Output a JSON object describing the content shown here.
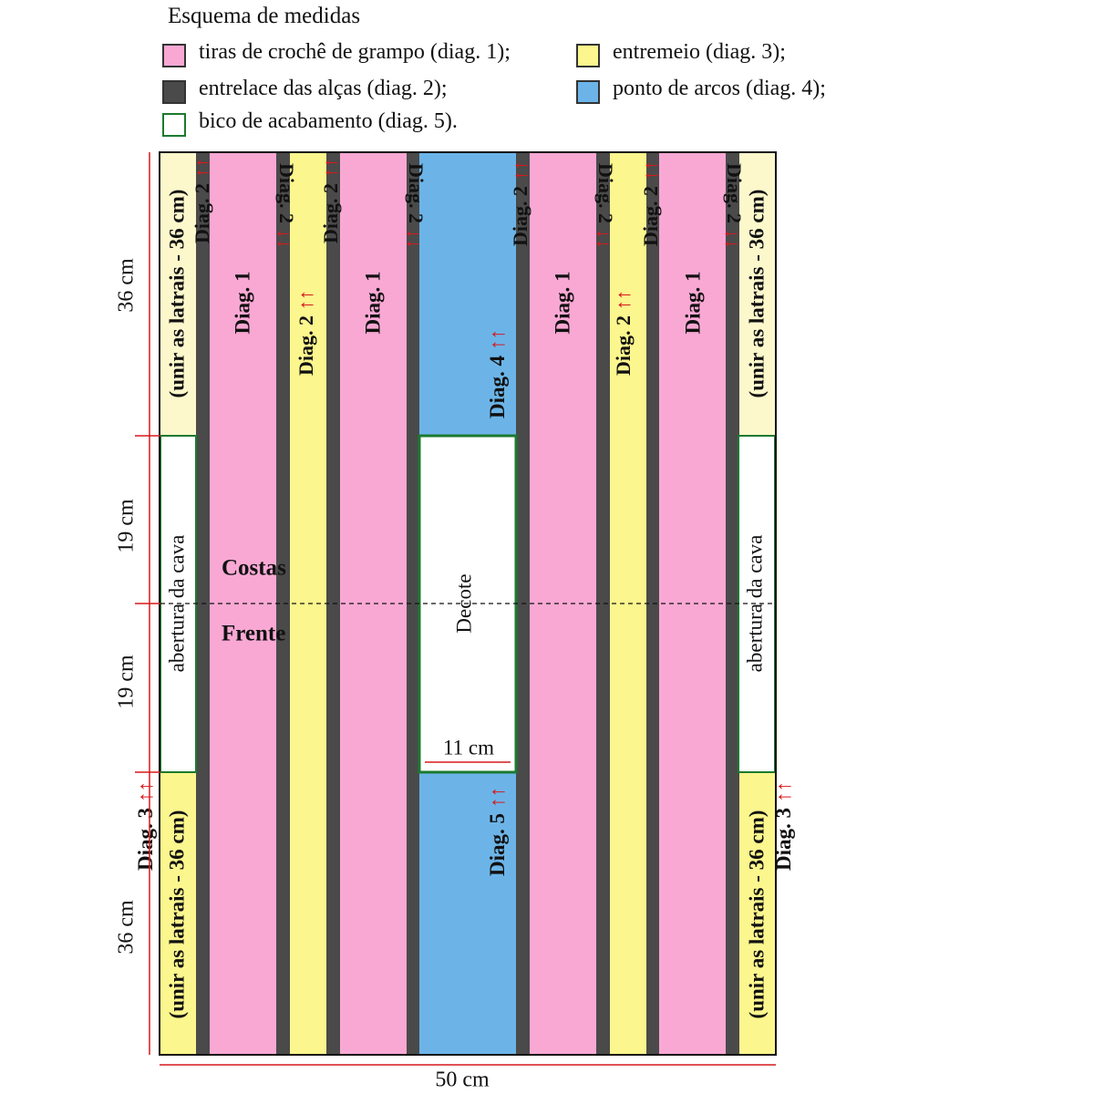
{
  "legend": {
    "title": "Esquema de medidas",
    "items": [
      {
        "key": "pink",
        "label": "tiras de crochê de grampo (diag. 1);",
        "color": "#f9a8d4"
      },
      {
        "key": "yellow",
        "label": "entremeio (diag. 3);",
        "color": "#fcf68e"
      },
      {
        "key": "dark",
        "label": "entrelace das alças (diag. 2);",
        "color": "#4a4a4a"
      },
      {
        "key": "blue",
        "label": "ponto de arcos (diag. 4);",
        "color": "#6cb4e8"
      },
      {
        "key": "white",
        "label": "bico de acabamento (diag. 5).",
        "color": "#ffffff",
        "border": "#1b7a2f"
      }
    ]
  },
  "colors": {
    "pink": "#f9a8d4",
    "yellow": "#fcf68e",
    "pale_yellow": "#fdf8cc",
    "dark": "#4a4a4a",
    "blue": "#6cb4e8",
    "green": "#1b7a2f",
    "red": "#d7191c",
    "outline": "#111111"
  },
  "diagram": {
    "labels": {
      "diag1": "Diag. 1",
      "diag2": "Diag. 2",
      "diag3": "Diag. 3",
      "diag4": "Diag. 4",
      "diag5": "Diag. 5",
      "arrows": "↑↑",
      "side_join": "(unir as latrais  - 36 cm)",
      "armhole": "abertura da cava",
      "back": "Costas",
      "front": "Frente",
      "neckline": "Decote",
      "neck_width": "11 cm",
      "total_width": "50 cm",
      "dim_top": "36 cm",
      "dim_upper_mid": "19 cm",
      "dim_lower_mid": "19 cm",
      "dim_bottom": "36 cm"
    }
  }
}
